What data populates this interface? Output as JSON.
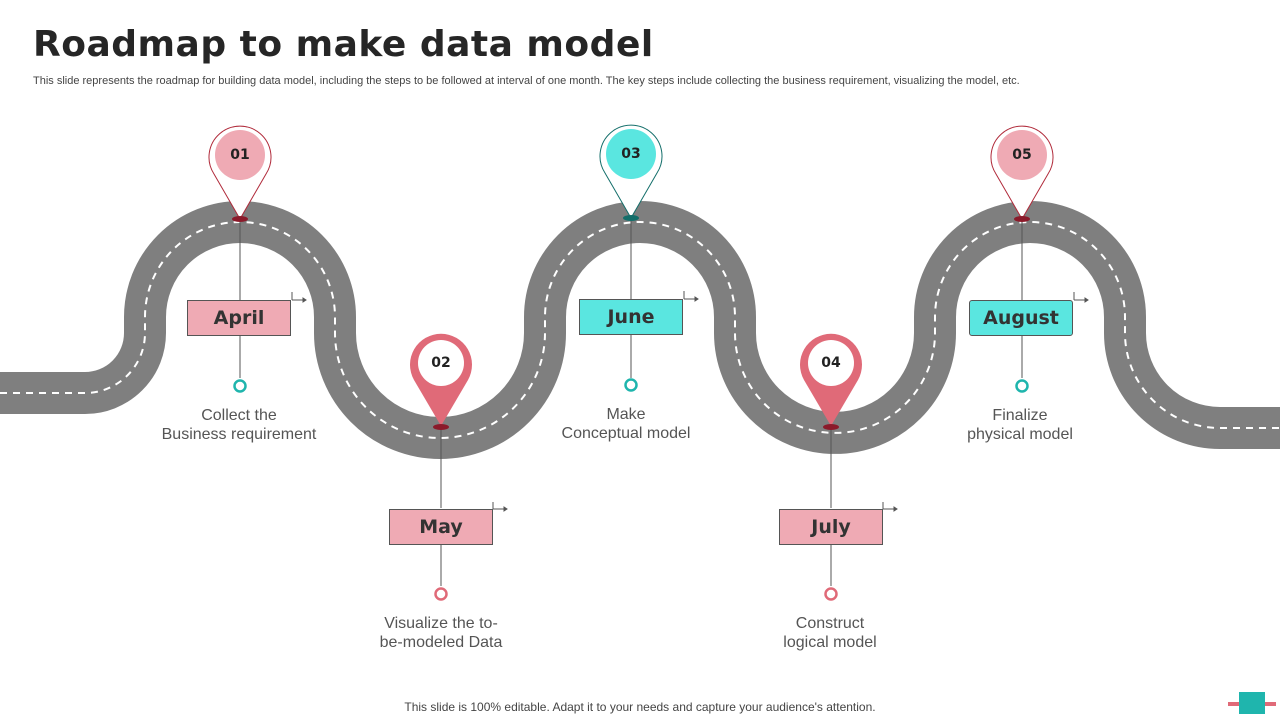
{
  "title": "Roadmap to make data model",
  "subtitle": "This slide represents the roadmap for building data model, including the steps to be followed at interval of one month. The key steps include  collecting the business requirement, visualizing the model, etc.",
  "steps": [
    {
      "number": "01",
      "month": "April",
      "line1": "Collect the",
      "line2": "Business requirement"
    },
    {
      "number": "02",
      "month": "May",
      "line1": "Visualize the to-",
      "line2": "be-modeled Data"
    },
    {
      "number": "03",
      "month": "June",
      "line1": "Make",
      "line2": "Conceptual model"
    },
    {
      "number": "04",
      "month": "July",
      "line1": "Construct",
      "line2": "logical model"
    },
    {
      "number": "05",
      "month": "August",
      "line1": "Finalize",
      "line2": "physical model"
    }
  ],
  "colors": {
    "pink": "#efaab4",
    "pink_dark": "#e06a78",
    "cyan": "#5ae6e0",
    "teal": "#1fb5ad",
    "road": "#7f7f7f"
  },
  "footer": "This slide is 100% editable. Adapt it to your needs and capture your audience's attention."
}
